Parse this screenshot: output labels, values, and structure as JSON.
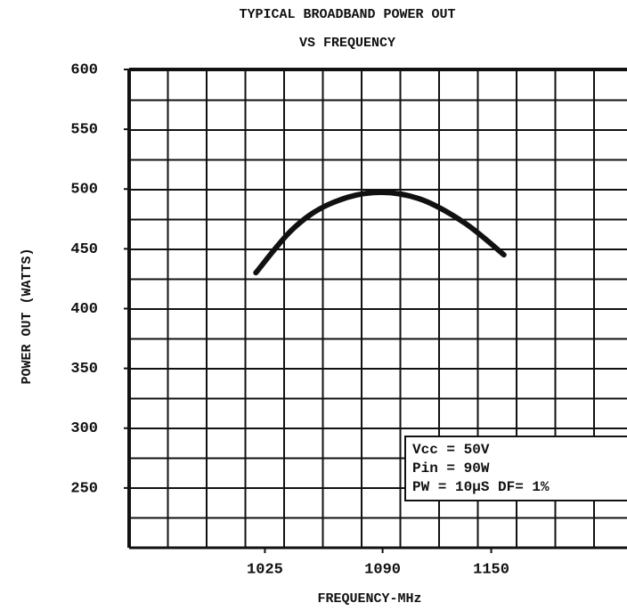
{
  "chart_data": {
    "type": "line",
    "title": [
      "TYPICAL BROADBAND POWER OUT",
      "VS FREQUENCY"
    ],
    "x_label": "FREQUENCY-MHz",
    "y_label": "POWER OUT (WATTS)",
    "annotation": [
      "Vcc = 50V",
      "Pin = 90W",
      "PW  = 10µS DF= 1%"
    ],
    "x": [
      1020,
      1040,
      1060,
      1085,
      1110,
      1135,
      1157
    ],
    "series": [
      {
        "color": "#111111",
        "values": [
          430,
          466,
          487,
          497,
          492,
          472,
          445
        ]
      }
    ],
    "xlim": [
      950,
      1225
    ],
    "xticks": [
      1025,
      1090,
      1150
    ],
    "ylim": [
      200,
      600
    ],
    "yticks": [
      250,
      300,
      350,
      400,
      450,
      500,
      550,
      600
    ],
    "grid": true
  }
}
